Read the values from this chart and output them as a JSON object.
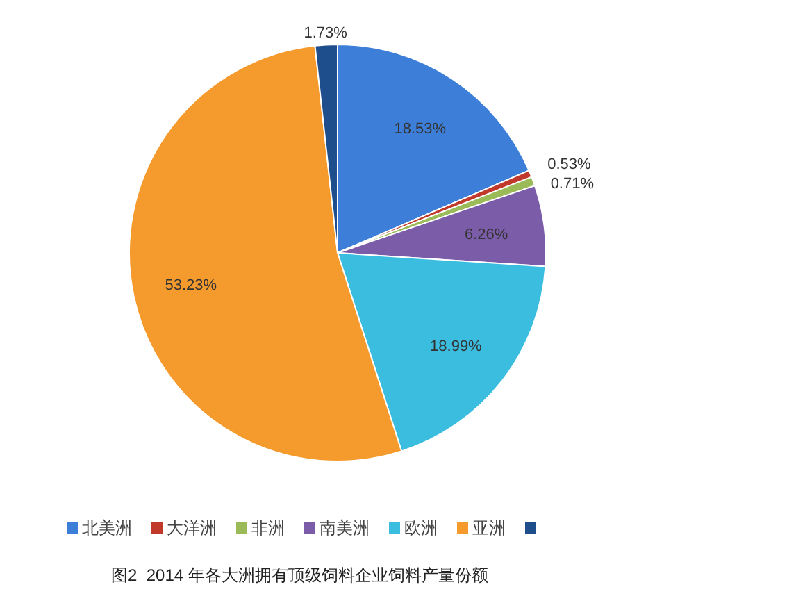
{
  "chart_data": {
    "type": "pie",
    "title": "图2  2014 年各大洲拥有顶级饲料企业饲料产量份额",
    "categories": [
      "北美洲",
      "大洋洲",
      "非洲",
      "南美洲",
      "欧洲",
      "亚洲",
      null
    ],
    "values": [
      18.53,
      0.53,
      0.71,
      6.26,
      18.99,
      53.23,
      1.73
    ],
    "value_labels": [
      "18.53%",
      "0.53%",
      "0.71%",
      "6.26%",
      "18.99%",
      "53.23%",
      "1.73%"
    ],
    "colors": [
      "#3d7fd8",
      "#c0392b",
      "#9bbb59",
      "#7b5ca8",
      "#3bbde0",
      "#f59b2e",
      "#1f4e8c"
    ],
    "legend": "bottom"
  }
}
